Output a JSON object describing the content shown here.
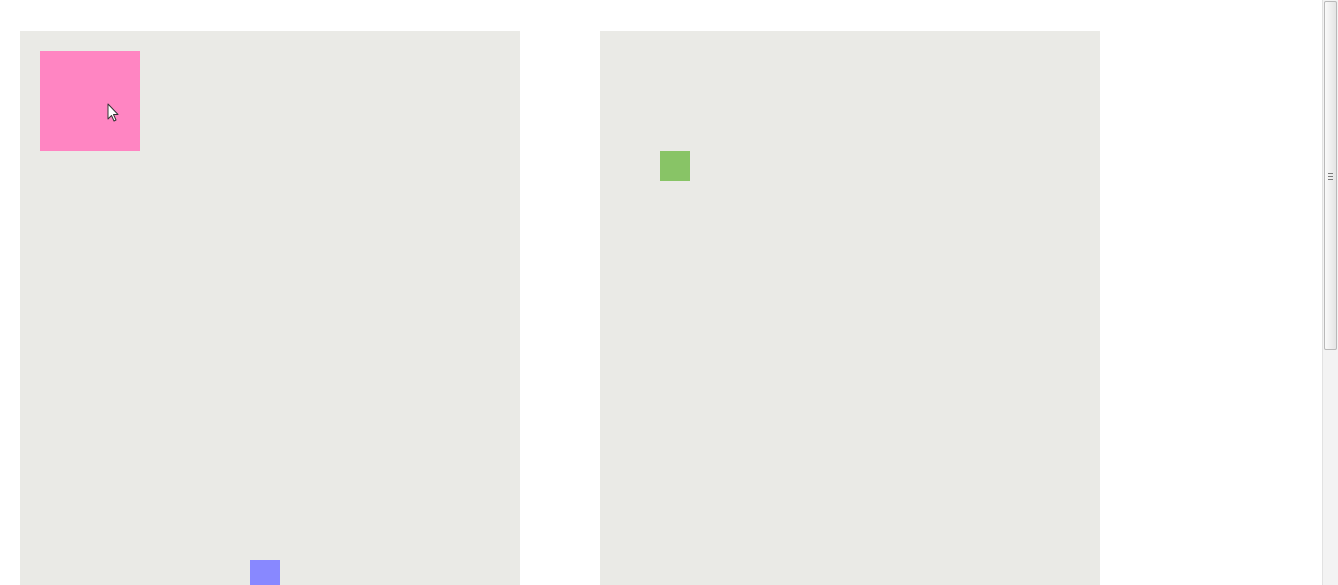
{
  "colors": {
    "background": "#ffffff",
    "panel": "#eaeae6",
    "pink_box": "#ff85c2",
    "blue_box": "#8888ff",
    "green_box": "#88c466",
    "scrollbar_track": "#f3f3f3"
  },
  "icons": {
    "cursor": "mouse-pointer-arrow",
    "scroll_grip": "scrollbar-grip"
  }
}
